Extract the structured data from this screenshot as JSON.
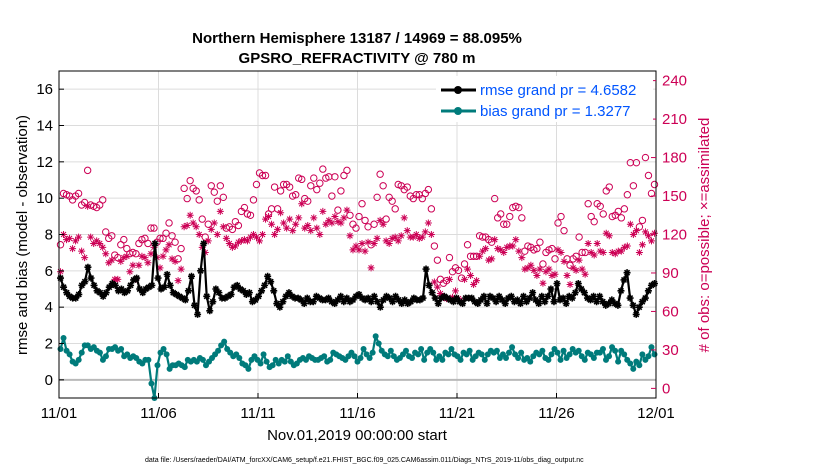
{
  "chart_data": {
    "type": "line",
    "title_line1": "Northern Hemisphere 13187 / 14969 = 88.095%",
    "title_line2": "GPSRO_REFRACTIVITY @ 780 m",
    "xlabel": "Nov.01,2019 00:00:00 start",
    "ylabel_left": "rmse and bias (model - observation)",
    "ylabel_right": "# of obs: o=possible; ×=assimilated",
    "xlim": [
      0,
      30
    ],
    "ylim_left": [
      -1,
      17
    ],
    "ylim_right": [
      -7.5,
      247.5
    ],
    "x_ticks": [
      0,
      5,
      10,
      15,
      20,
      25,
      30
    ],
    "x_tick_labels": [
      "11/01",
      "11/06",
      "11/11",
      "11/16",
      "11/21",
      "11/26",
      "12/01"
    ],
    "y_ticks_left": [
      0,
      2,
      4,
      6,
      8,
      10,
      12,
      14,
      16
    ],
    "y_ticks_right": [
      0,
      30,
      60,
      90,
      120,
      150,
      180,
      210,
      240
    ],
    "series": [
      {
        "name": "rmse grand pr = 4.6582",
        "color": "#000000",
        "axis": "left",
        "values": [
          5.6,
          5.1,
          4.8,
          4.6,
          4.5,
          4.5,
          4.7,
          5.2,
          5.4,
          6.2,
          5.6,
          5.2,
          4.9,
          4.8,
          4.6,
          4.8,
          5.1,
          5.3,
          5.2,
          4.9,
          5.0,
          4.8,
          4.9,
          5.2,
          5.5,
          5.6,
          5.0,
          4.8,
          5.0,
          5.1,
          5.2,
          7.5,
          5.6,
          5.0,
          5.1,
          5.8,
          5.2,
          4.8,
          4.7,
          4.6,
          4.5,
          4.4,
          4.9,
          5.7,
          4.1,
          3.6,
          6.0,
          7.5,
          4.6,
          3.8,
          4.3,
          5.0,
          4.8,
          4.5,
          4.5,
          4.6,
          4.7,
          5.1,
          5.2,
          5.0,
          4.9,
          4.7,
          4.8,
          4.3,
          4.4,
          4.6,
          4.9,
          5.2,
          5.7,
          5.4,
          4.9,
          4.2,
          4.0,
          4.3,
          4.6,
          4.8,
          4.6,
          4.5,
          4.5,
          4.4,
          4.2,
          4.5,
          4.3,
          4.3,
          4.6,
          4.5,
          4.4,
          4.4,
          4.5,
          4.3,
          4.2,
          4.4,
          4.6,
          4.3,
          4.5,
          4.3,
          4.4,
          4.6,
          4.7,
          4.5,
          4.4,
          4.5,
          4.3,
          4.6,
          4.3,
          4.0,
          4.4,
          4.6,
          4.5,
          4.3,
          4.6,
          4.4,
          4.2,
          4.4,
          4.2,
          4.3,
          4.5,
          4.4,
          4.4,
          4.5,
          6.1,
          5.2,
          4.8,
          4.5,
          4.2,
          4.5,
          4.6,
          4.5,
          4.4,
          4.3,
          4.5,
          4.3,
          4.2,
          4.5,
          4.5,
          4.5,
          4.3,
          4.2,
          4.4,
          4.6,
          4.2,
          4.6,
          4.5,
          4.3,
          4.6,
          4.4,
          4.2,
          4.5,
          4.6,
          4.3,
          4.4,
          4.2,
          4.6,
          4.3,
          4.5,
          4.8,
          4.4,
          4.2,
          4.6,
          4.3,
          4.6,
          5.0,
          4.3,
          5.3,
          4.4,
          4.5,
          4.2,
          4.6,
          4.5,
          4.8,
          5.3,
          5.0,
          4.8,
          4.5,
          4.4,
          4.6,
          4.3,
          4.6,
          4.3,
          4.1,
          4.2,
          4.4,
          4.2,
          4.1,
          4.9,
          5.5,
          5.9,
          4.5,
          4.1,
          3.6,
          4.0,
          4.3,
          4.5,
          4.9,
          5.2,
          5.3
        ]
      },
      {
        "name": "bias grand pr = 1.3277",
        "color": "#007b7b",
        "axis": "left",
        "values": [
          1.7,
          2.3,
          1.6,
          1.4,
          1.0,
          0.9,
          1.1,
          1.5,
          1.9,
          1.9,
          1.7,
          1.8,
          1.6,
          1.5,
          1.1,
          1.3,
          1.7,
          1.7,
          1.8,
          1.6,
          1.7,
          1.3,
          1.4,
          1.2,
          1.3,
          1.2,
          1.0,
          0.9,
          1.1,
          1.1,
          -0.2,
          -1.0,
          0.8,
          1.5,
          1.7,
          1.4,
          0.6,
          0.8,
          0.8,
          0.9,
          0.8,
          0.7,
          1.1,
          1.0,
          1.1,
          1.0,
          1.2,
          1.1,
          0.8,
          1.0,
          1.2,
          1.4,
          1.6,
          1.9,
          2.1,
          1.7,
          1.5,
          1.3,
          1.4,
          1.2,
          0.9,
          0.8,
          0.6,
          1.1,
          1.3,
          1.1,
          0.9,
          1.4,
          1.0,
          0.7,
          0.8,
          1.1,
          0.9,
          1.1,
          1.0,
          1.3,
          1.0,
          0.8,
          0.9,
          1.1,
          1.2,
          1.1,
          1.3,
          1.2,
          1.1,
          1.1,
          1.2,
          1.3,
          1.0,
          1.1,
          1.5,
          1.4,
          1.3,
          1.2,
          1.1,
          1.3,
          1.5,
          1.3,
          1.0,
          1.2,
          1.7,
          1.4,
          1.2,
          1.5,
          2.4,
          2.0,
          1.6,
          1.4,
          1.3,
          1.6,
          1.3,
          1.1,
          1.2,
          1.4,
          1.6,
          1.3,
          1.2,
          1.5,
          1.4,
          1.7,
          1.1,
          1.5,
          1.7,
          1.5,
          1.1,
          1.3,
          1.1,
          1.5,
          1.4,
          1.7,
          1.4,
          1.3,
          1.1,
          1.5,
          1.4,
          1.6,
          1.1,
          1.3,
          1.5,
          1.4,
          1.1,
          1.4,
          1.6,
          1.5,
          1.6,
          1.2,
          1.4,
          1.2,
          1.5,
          1.8,
          1.4,
          1.2,
          1.5,
          1.1,
          1.2,
          1.0,
          1.3,
          1.5,
          1.4,
          1.6,
          1.2,
          1.1,
          1.4,
          1.7,
          1.5,
          1.1,
          1.6,
          1.2,
          1.4,
          1.7,
          1.5,
          1.6,
          1.3,
          1.1,
          1.5,
          1.4,
          1.2,
          1.5,
          1.5,
          1.7,
          1.1,
          1.3,
          1.8,
          1.6,
          1.0,
          1.6,
          1.4,
          1.1,
          0.9,
          0.6,
          1.0,
          0.8,
          1.4,
          1.1,
          1.3,
          1.8,
          1.4
        ]
      }
    ],
    "obs_possible": {
      "marker": "open-circle",
      "color": "#cc0055",
      "axis": "right",
      "values": [
        112,
        152,
        151,
        150,
        147,
        150,
        152,
        143,
        145,
        170,
        143,
        142,
        141,
        143,
        147,
        122,
        117,
        119,
        104,
        102,
        112,
        116,
        109,
        105,
        106,
        105,
        113,
        116,
        117,
        113,
        125,
        125,
        114,
        117,
        117,
        121,
        129,
        119,
        114,
        101,
        109,
        156,
        148,
        162,
        156,
        154,
        147,
        132,
        118,
        128,
        158,
        153,
        146,
        158,
        149,
        125,
        126,
        124,
        130,
        127,
        138,
        141,
        136,
        135,
        147,
        159,
        168,
        166,
        166,
        136,
        140,
        157,
        140,
        154,
        159,
        159,
        157,
        150,
        151,
        164,
        163,
        148,
        146,
        158,
        164,
        155,
        160,
        171,
        164,
        165,
        150,
        165,
        139,
        154,
        166,
        170,
        135,
        128,
        125,
        134,
        144,
        131,
        126,
        112,
        128,
        149,
        167,
        158,
        132,
        149,
        146,
        140,
        159,
        158,
        155,
        157,
        150,
        148,
        151,
        151,
        148,
        152,
        155,
        140,
        111,
        100,
        85,
        82,
        84,
        102,
        91,
        94,
        92,
        86,
        97,
        112,
        103,
        103,
        103,
        119,
        118,
        118,
        116,
        114,
        148,
        133,
        136,
        128,
        128,
        134,
        141,
        142,
        141,
        133,
        107,
        111,
        110,
        108,
        109,
        114,
        97,
        106,
        108,
        109,
        101,
        129,
        134,
        123,
        101,
        96,
        101,
        103,
        118,
        106,
        106,
        144,
        134,
        130,
        144,
        142,
        136,
        154,
        157,
        134,
        135,
        138,
        133,
        140,
        151,
        176,
        158,
        176,
        126,
        131,
        180,
        166,
        152,
        159
      ]
    },
    "obs_assimilated": {
      "marker": "asterisk",
      "color": "#cc0055",
      "axis": "right",
      "values": [
        91,
        120,
        116,
        117,
        109,
        115,
        118,
        107,
        102,
        142,
        118,
        113,
        115,
        113,
        110,
        105,
        98,
        100,
        85,
        85,
        99,
        102,
        103,
        91,
        96,
        85,
        96,
        103,
        102,
        98,
        105,
        110,
        102,
        94,
        103,
        108,
        112,
        101,
        99,
        84,
        93,
        126,
        127,
        135,
        129,
        126,
        120,
        110,
        106,
        115,
        124,
        129,
        120,
        138,
        126,
        117,
        113,
        110,
        111,
        114,
        115,
        116,
        115,
        118,
        120,
        118,
        115,
        120,
        132,
        134,
        128,
        120,
        124,
        137,
        129,
        125,
        132,
        123,
        128,
        133,
        144,
        125,
        127,
        123,
        133,
        125,
        120,
        138,
        128,
        131,
        129,
        134,
        130,
        129,
        133,
        139,
        119,
        108,
        111,
        108,
        113,
        107,
        114,
        94,
        113,
        117,
        131,
        128,
        115,
        113,
        117,
        118,
        115,
        119,
        133,
        123,
        118,
        118,
        120,
        117,
        118,
        122,
        129,
        120,
        83,
        79,
        74,
        71,
        70,
        85,
        71,
        76,
        70,
        68,
        85,
        93,
        88,
        81,
        84,
        103,
        107,
        109,
        100,
        101,
        116,
        109,
        108,
        106,
        110,
        111,
        111,
        116,
        107,
        102,
        93,
        94,
        96,
        92,
        88,
        93,
        82,
        91,
        93,
        88,
        89,
        108,
        106,
        99,
        88,
        81,
        94,
        92,
        100,
        93,
        89,
        113,
        106,
        104,
        113,
        107,
        106,
        121,
        119,
        106,
        105,
        107,
        107,
        110,
        111,
        128,
        120,
        123,
        106,
        112,
        122,
        119,
        115,
        121
      ]
    },
    "legend": [
      {
        "label": "rmse grand pr = 4.6582",
        "color": "#000000",
        "text_color": "#0055ff"
      },
      {
        "label": "bias grand pr = 1.3277",
        "color": "#007b7b",
        "text_color": "#0055ff"
      }
    ],
    "legend_position": "top-right",
    "grid": true
  },
  "footer": "data file: /Users/raeder/DAI/ATM_forcXX/CAM6_setup/f.e21.FHIST_BGC.f09_025.CAM6assim.011/Diags_NTrS_2019-11/obs_diag_output.nc"
}
